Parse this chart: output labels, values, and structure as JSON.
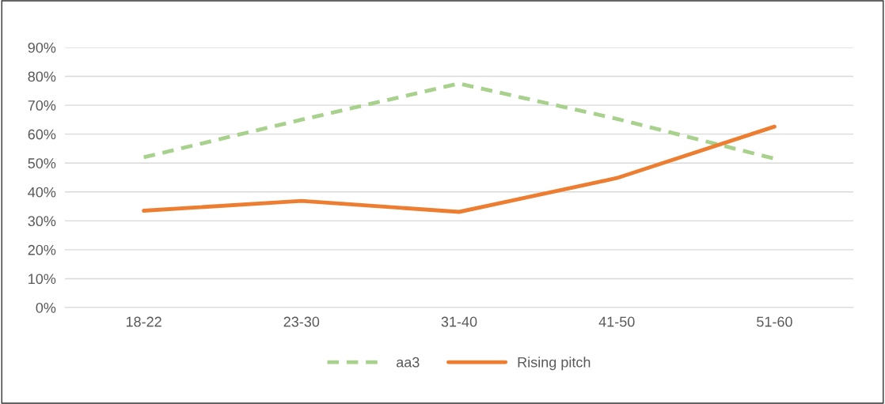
{
  "chart_data": {
    "type": "line",
    "categories": [
      "18-22",
      "23-30",
      "31-40",
      "41-50",
      "51-60"
    ],
    "series": [
      {
        "name": "aa3",
        "color": "#a9d18e",
        "line_style": "dashed",
        "values": [
          0.52,
          0.65,
          0.775,
          0.653,
          0.515
        ]
      },
      {
        "name": "Rising pitch",
        "color": "#ed7d31",
        "line_style": "solid",
        "values": [
          0.335,
          0.369,
          0.331,
          0.448,
          0.626
        ]
      }
    ],
    "ylim": [
      0,
      0.9
    ],
    "yticks": [
      {
        "value": 0,
        "label": "0%"
      },
      {
        "value": 0.1,
        "label": "10%"
      },
      {
        "value": 0.2,
        "label": "20%"
      },
      {
        "value": 0.3,
        "label": "30%"
      },
      {
        "value": 0.4,
        "label": "40%"
      },
      {
        "value": 0.5,
        "label": "50%"
      },
      {
        "value": 0.6,
        "label": "60%"
      },
      {
        "value": 0.7,
        "label": "70%"
      },
      {
        "value": 0.8,
        "label": "80%"
      },
      {
        "value": 0.9,
        "label": "90%"
      }
    ],
    "grid": "y",
    "legend": "bottom",
    "marker": "none"
  }
}
